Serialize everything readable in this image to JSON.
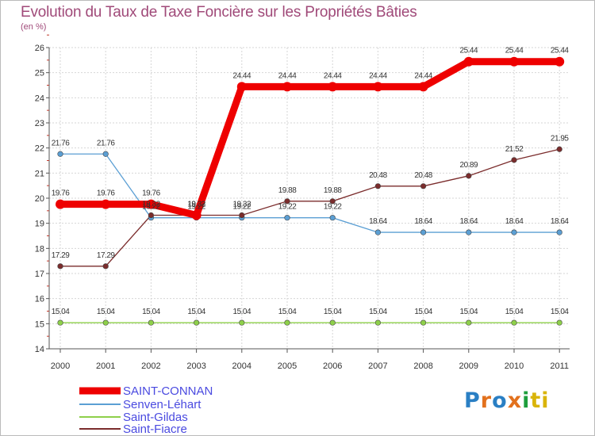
{
  "chart_data": {
    "type": "line",
    "title": "Evolution du Taux de Taxe Foncière sur les Propriétés Bâties",
    "ylabel": "(en %)",
    "xlabel": "",
    "categories": [
      "2000",
      "2001",
      "2002",
      "2003",
      "2004",
      "2005",
      "2006",
      "2007",
      "2008",
      "2009",
      "2010",
      "2011"
    ],
    "ylim": [
      14,
      26
    ],
    "yticks": [
      14,
      15,
      16,
      17,
      18,
      19,
      20,
      21,
      22,
      23,
      24,
      25,
      26
    ],
    "series": [
      {
        "name": "SAINT-CONNAN",
        "color": "#ee0000",
        "values": [
          19.76,
          19.76,
          19.76,
          19.32,
          24.44,
          24.44,
          24.44,
          24.44,
          24.44,
          25.44,
          25.44,
          25.44
        ],
        "labels": [
          "19.76",
          "19.76",
          "19.76",
          "19.32",
          "24.44",
          "24.44",
          "24.44",
          "24.44",
          "24.44",
          "25.44",
          "25.44",
          "25.44"
        ]
      },
      {
        "name": "Senven-Léhart",
        "color": "#5b9fd4",
        "values": [
          21.76,
          21.76,
          19.22,
          19.22,
          19.22,
          19.22,
          19.22,
          18.64,
          18.64,
          18.64,
          18.64,
          18.64
        ],
        "labels": [
          "21.76",
          "21.76",
          "19.22",
          "19.22",
          "19.22",
          "19.22",
          "19.22",
          "18.64",
          "18.64",
          "18.64",
          "18.64",
          "18.64"
        ]
      },
      {
        "name": "Saint-Gildas",
        "color": "#8ed04a",
        "values": [
          15.04,
          15.04,
          15.04,
          15.04,
          15.04,
          15.04,
          15.04,
          15.04,
          15.04,
          15.04,
          15.04,
          15.04
        ],
        "labels": [
          "15.04",
          "15.04",
          "15.04",
          "15.04",
          "15.04",
          "15.04",
          "15.04",
          "15.04",
          "15.04",
          "15.04",
          "15.04",
          "15.04"
        ]
      },
      {
        "name": "Saint-Fiacre",
        "color": "#7b2c2c",
        "values": [
          17.29,
          17.29,
          19.32,
          19.32,
          19.32,
          19.88,
          19.88,
          20.48,
          20.48,
          20.89,
          21.52,
          21.95
        ],
        "labels": [
          "17.29",
          "17.29",
          "19.32",
          "19.32",
          "19.32",
          "19.88",
          "19.88",
          "20.48",
          "20.48",
          "20.89",
          "21.52",
          "21.95"
        ]
      }
    ]
  },
  "logo": {
    "letters": [
      "P",
      "r",
      "o",
      "x",
      "i",
      "ti"
    ]
  }
}
